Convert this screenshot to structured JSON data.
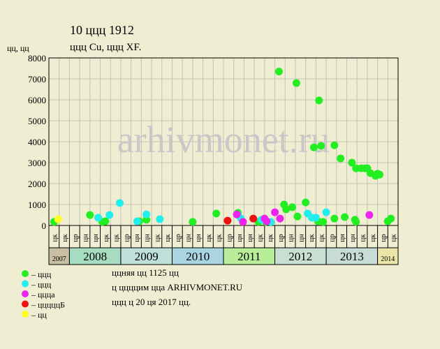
{
  "chart_data": {
    "type": "scatter",
    "title": "10 ццц 1912",
    "subtitle": "ццц Cu, ццц XF.",
    "y_label": "цц, цц",
    "watermark": "arhivmonet.ru",
    "xlim": [
      0,
      34
    ],
    "ylim": [
      0,
      8000
    ],
    "yticks": [
      0,
      1000,
      2000,
      3000,
      4000,
      5000,
      6000,
      7000,
      8000
    ],
    "grid": true,
    "columns": [
      "цк",
      "цк",
      "цр",
      "цн",
      "цн",
      "цк",
      "цк",
      "цр",
      "цн",
      "цн",
      "цк",
      "цк",
      "цр",
      "цн",
      "цн",
      "цк",
      "цк",
      "цр",
      "цн",
      "цн",
      "цк",
      "цк",
      "цр",
      "цн",
      "цн",
      "цк",
      "цк",
      "цр",
      "цн",
      "цн",
      "цк",
      "цк",
      "цр",
      "цк"
    ],
    "years": [
      "2007",
      "2008",
      "2009",
      "2010",
      "2011",
      "2012",
      "2013",
      "2014"
    ],
    "series": [
      {
        "name": "– ццц",
        "color": "#22ee22",
        "x": [
          0.5,
          4.0,
          5.2,
          5.5,
          8.8,
          9.5,
          14.0,
          16.3,
          18.4,
          20.4,
          21.1,
          22.4,
          22.9,
          23.1,
          23.7,
          24.1,
          24.2,
          25.0,
          25.8,
          26.2,
          26.3,
          26.5,
          26.7,
          27.8,
          27.8,
          28.4,
          28.8,
          29.5,
          29.8,
          29.9,
          29.9,
          30.4,
          30.8,
          31.0,
          31.3,
          31.8,
          32.0,
          32.2,
          33.0,
          33.3
        ],
        "values": [
          170,
          500,
          170,
          200,
          200,
          270,
          170,
          570,
          600,
          170,
          170,
          7350,
          1000,
          770,
          870,
          6800,
          430,
          1100,
          3730,
          200,
          5970,
          3800,
          170,
          330,
          3830,
          3200,
          400,
          3000,
          270,
          170,
          2730,
          2730,
          2730,
          2730,
          2500,
          2370,
          2470,
          2430,
          200,
          330
        ]
      },
      {
        "name": "– ццц",
        "color": "#22eeee",
        "x": [
          4.8,
          5.9,
          6.9,
          8.6,
          9.5,
          10.8,
          18.4,
          18.7,
          20.7,
          21.6,
          25.2,
          25.6,
          26.0,
          27.0
        ],
        "values": [
          370,
          500,
          1070,
          200,
          530,
          300,
          500,
          330,
          270,
          170,
          570,
          370,
          370,
          630
        ]
      },
      {
        "name": "– ццца",
        "color": "#ee22ee",
        "x": [
          18.3,
          18.9,
          21.0,
          21.2,
          22.0,
          22.5,
          31.2
        ],
        "values": [
          530,
          170,
          330,
          200,
          630,
          330,
          500
        ]
      },
      {
        "name": "– цццццБ",
        "color": "#ee1111",
        "x": [
          17.4,
          19.9
        ],
        "values": [
          230,
          330
        ]
      },
      {
        "name": "– цц",
        "color": "#ffff22",
        "x": [
          0.9
        ],
        "values": [
          300
        ]
      }
    ],
    "notes": [
      "ццняя цц 1125 цц",
      "ц ццццим цца ARHIVMONET.RU",
      "ццц ц 20 ця 2017 цц."
    ]
  }
}
